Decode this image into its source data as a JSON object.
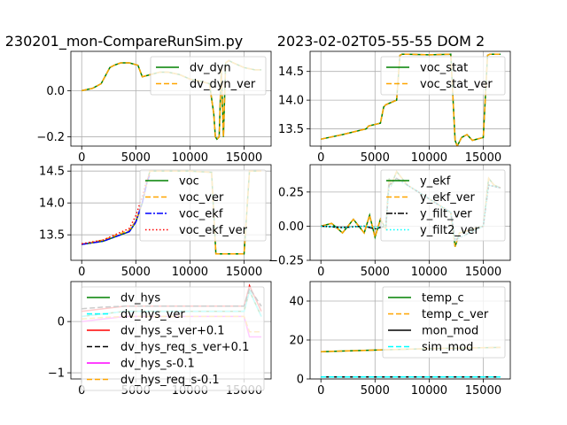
{
  "figure": {
    "title_left": "230201_mon-CompareRunSim.py",
    "title_right": "2023-02-02T05-55-55 DOM 2"
  },
  "chart_data": [
    {
      "type": "line",
      "xlim": [
        -1000,
        17500
      ],
      "ylim": [
        -0.24,
        0.17
      ],
      "xticks": [
        0,
        5000,
        10000,
        15000
      ],
      "yticks": [
        -0.2,
        0.0
      ],
      "ytick_labels": [
        "−0.2",
        "0.0"
      ],
      "grid": true,
      "legend": "top-right",
      "series": [
        {
          "name": "dv_dyn",
          "color": "#008000",
          "style": "solid",
          "x": [
            0,
            1000,
            1800,
            2600,
            3000,
            3600,
            4400,
            5200,
            5600,
            6400,
            7200,
            8000,
            9000,
            10000,
            11000,
            11800,
            12200,
            12350,
            12500,
            12700,
            12900,
            13100,
            13300,
            13600,
            14000,
            15000,
            16000,
            16600
          ],
          "y": [
            0.0,
            0.01,
            0.03,
            0.1,
            0.11,
            0.12,
            0.12,
            0.11,
            0.06,
            0.07,
            0.08,
            0.08,
            0.07,
            0.05,
            0.04,
            0.03,
            -0.1,
            -0.2,
            -0.21,
            -0.2,
            0.1,
            -0.2,
            0.12,
            0.13,
            0.12,
            0.1,
            0.09,
            0.09
          ]
        },
        {
          "name": "dv_dyn_ver",
          "color": "#FFA500",
          "style": "dashed",
          "x": [
            0,
            1000,
            1800,
            2600,
            3000,
            3600,
            4400,
            5200,
            5600,
            6400,
            7200,
            8000,
            9000,
            10000,
            11000,
            11800,
            12200,
            12350,
            12500,
            12700,
            12900,
            13100,
            13300,
            13600,
            14000,
            15000,
            16000,
            16600
          ],
          "y": [
            0.0,
            0.01,
            0.03,
            0.1,
            0.11,
            0.12,
            0.12,
            0.11,
            0.06,
            0.07,
            0.08,
            0.08,
            0.07,
            0.05,
            0.04,
            0.03,
            -0.1,
            -0.2,
            -0.21,
            -0.2,
            0.1,
            -0.2,
            0.12,
            0.13,
            0.12,
            0.1,
            0.09,
            0.09
          ]
        }
      ]
    },
    {
      "type": "line",
      "xlim": [
        -1000,
        17500
      ],
      "ylim": [
        13.2,
        14.85
      ],
      "xticks": [
        0,
        5000,
        10000,
        15000
      ],
      "yticks": [
        13.5,
        14.0,
        14.5
      ],
      "ytick_labels": [
        "13.5",
        "14.0",
        "14.5"
      ],
      "grid": true,
      "legend": "top-right",
      "series": [
        {
          "name": "voc_stat",
          "color": "#008000",
          "style": "solid",
          "x": [
            0,
            2000,
            4200,
            4400,
            5500,
            5800,
            6000,
            7000,
            7300,
            7500,
            8000,
            10000,
            12000,
            12400,
            12600,
            13000,
            13500,
            14000,
            15000,
            15400,
            15600,
            16000,
            16600
          ],
          "y": [
            13.32,
            13.4,
            13.5,
            13.55,
            13.6,
            13.88,
            13.92,
            14.0,
            14.78,
            14.8,
            14.8,
            14.79,
            14.8,
            13.3,
            13.2,
            13.35,
            13.4,
            13.3,
            13.35,
            14.78,
            14.8,
            14.8,
            14.8
          ]
        },
        {
          "name": "voc_stat_ver",
          "color": "#FFA500",
          "style": "dashed",
          "x": [
            0,
            2000,
            4200,
            4400,
            5500,
            5800,
            6000,
            7000,
            7300,
            7500,
            8000,
            10000,
            12000,
            12400,
            12600,
            13000,
            13500,
            14000,
            15000,
            15400,
            15600,
            16000,
            16600
          ],
          "y": [
            13.32,
            13.4,
            13.5,
            13.55,
            13.6,
            13.88,
            13.92,
            14.0,
            14.78,
            14.8,
            14.8,
            14.79,
            14.8,
            13.3,
            13.2,
            13.35,
            13.4,
            13.3,
            13.35,
            14.78,
            14.8,
            14.8,
            14.8
          ]
        }
      ]
    },
    {
      "type": "line",
      "xlim": [
        -1000,
        17500
      ],
      "ylim": [
        13.1,
        14.6
      ],
      "xticks": [
        0,
        5000,
        10000,
        15000
      ],
      "yticks": [
        13.5,
        14.0,
        14.5
      ],
      "ytick_labels": [
        "13.5",
        "14.0",
        "14.5"
      ],
      "grid": true,
      "legend": "top-right",
      "series": [
        {
          "name": "voc",
          "color": "#008000",
          "style": "solid",
          "x": [
            0,
            2000,
            4400,
            5000,
            5600,
            6000,
            6300,
            8000,
            10000,
            12000,
            12400,
            12800,
            13500,
            15000,
            15500,
            16600
          ],
          "y": [
            13.35,
            13.4,
            13.55,
            13.7,
            14.0,
            14.3,
            14.5,
            14.5,
            14.5,
            14.48,
            13.2,
            13.2,
            13.2,
            13.2,
            14.5,
            14.5
          ]
        },
        {
          "name": "voc_ver",
          "color": "#FFA500",
          "style": "dashed",
          "x": [
            0,
            2000,
            4400,
            5000,
            5600,
            6000,
            6300,
            8000,
            10000,
            12000,
            12400,
            12800,
            13500,
            15000,
            15500,
            16600
          ],
          "y": [
            13.35,
            13.42,
            13.57,
            13.72,
            14.0,
            14.3,
            14.5,
            14.5,
            14.5,
            14.48,
            13.2,
            13.2,
            13.2,
            13.2,
            14.5,
            14.5
          ]
        },
        {
          "name": "voc_ekf",
          "color": "#0000FF",
          "style": "dashdot",
          "x": [
            0,
            2000,
            4400,
            5000,
            5600,
            6000,
            6300
          ],
          "y": [
            13.35,
            13.4,
            13.55,
            13.7,
            14.0,
            14.3,
            14.45
          ]
        },
        {
          "name": "voc_ekf_ver",
          "color": "#FF0000",
          "style": "dotted",
          "x": [
            0,
            2000,
            4400,
            5000,
            5600,
            6000,
            6300
          ],
          "y": [
            13.36,
            13.42,
            13.6,
            13.8,
            14.1,
            14.35,
            14.45
          ]
        }
      ]
    },
    {
      "type": "line",
      "xlim": [
        -1000,
        17500
      ],
      "ylim": [
        -0.25,
        0.45
      ],
      "xticks": [
        0,
        5000,
        10000,
        15000
      ],
      "yticks": [
        -0.25,
        0.0,
        0.25
      ],
      "ytick_labels": [
        "−0.25",
        "0.00",
        "0.25"
      ],
      "grid": true,
      "legend": "top-right",
      "series": [
        {
          "name": "y_ekf",
          "color": "#008000",
          "style": "solid",
          "x": [
            0,
            1000,
            2000,
            3000,
            4000,
            4500,
            5000,
            5500,
            6000,
            6300,
            6500,
            7000,
            8000,
            10000,
            12000,
            12400,
            12800,
            15000,
            15500,
            16000,
            16600
          ],
          "y": [
            0.0,
            0.02,
            -0.05,
            0.05,
            -0.05,
            0.08,
            -0.08,
            0.05,
            -0.02,
            0.35,
            0.3,
            0.4,
            0.3,
            0.2,
            0.1,
            -0.15,
            -0.05,
            0.0,
            0.35,
            0.3,
            0.28
          ]
        },
        {
          "name": "y_ekf_ver",
          "color": "#FFA500",
          "style": "dashed",
          "x": [
            0,
            1000,
            2000,
            3000,
            4000,
            4500,
            5000,
            5500,
            6000,
            6300,
            6500,
            7000,
            8000,
            10000,
            12000,
            12400,
            12800,
            15000,
            15500,
            16000,
            16600
          ],
          "y": [
            0.0,
            0.02,
            -0.05,
            0.05,
            -0.05,
            0.08,
            -0.08,
            0.05,
            -0.02,
            0.35,
            0.3,
            0.4,
            0.3,
            0.2,
            0.1,
            -0.15,
            -0.05,
            0.0,
            0.35,
            0.3,
            0.28
          ]
        },
        {
          "name": "y_filt_ver",
          "color": "#000000",
          "style": "dashdot",
          "x": [
            0,
            2000,
            4000,
            5000,
            6000,
            6300,
            7000,
            8000,
            10000,
            12000,
            12400,
            15000,
            15500,
            16600
          ],
          "y": [
            0.0,
            -0.01,
            0.0,
            -0.02,
            0.0,
            0.3,
            0.35,
            0.3,
            0.2,
            0.1,
            -0.1,
            0.0,
            0.3,
            0.28
          ]
        },
        {
          "name": "y_filt2_ver",
          "color": "#00FFFF",
          "style": "dotted",
          "x": [
            0,
            2000,
            4000,
            5000,
            6000,
            6300,
            7000,
            8000,
            10000,
            12000,
            12400,
            15000,
            15500,
            16600
          ],
          "y": [
            0.0,
            -0.01,
            0.0,
            -0.01,
            0.0,
            0.28,
            0.34,
            0.3,
            0.2,
            0.1,
            -0.1,
            0.0,
            0.3,
            0.28
          ]
        }
      ]
    },
    {
      "type": "line",
      "xlim": [
        -1000,
        17500
      ],
      "ylim": [
        -1.12,
        0.78
      ],
      "xticks": [
        0,
        5000,
        10000,
        15000
      ],
      "yticks": [
        -1,
        0
      ],
      "ytick_labels": [
        "−1",
        "0"
      ],
      "grid": true,
      "legend": "top-left",
      "series": [
        {
          "name": "dv_hys",
          "color": "#008000",
          "style": "solid",
          "x": [
            0,
            2000,
            4000,
            6000,
            8000,
            10000,
            12000,
            15000,
            15500,
            16600
          ],
          "y": [
            0.1,
            0.15,
            0.2,
            0.2,
            0.2,
            0.2,
            0.2,
            0.2,
            0.6,
            0.1
          ]
        },
        {
          "name": "dv_hys_ver",
          "color": "#00FFFF",
          "style": "dashed",
          "x": [
            0,
            2000,
            4000,
            6000,
            8000,
            10000,
            12000,
            15000,
            15500,
            16600
          ],
          "y": [
            0.1,
            0.15,
            0.2,
            0.2,
            0.2,
            0.2,
            0.2,
            0.2,
            0.6,
            0.1
          ]
        },
        {
          "name": "dv_hys_s_ver+0.1",
          "color": "#FF0000",
          "style": "solid",
          "x": [
            0,
            2000,
            4000,
            6000,
            8000,
            10000,
            12000,
            15000,
            15500,
            16600
          ],
          "y": [
            0.2,
            0.25,
            0.3,
            0.3,
            0.3,
            0.3,
            0.3,
            0.3,
            0.7,
            0.2
          ]
        },
        {
          "name": "dv_hys_req_s_ver+0.1",
          "color": "#000000",
          "style": "dashed",
          "x": [
            0,
            2000,
            4000,
            6000,
            8000,
            10000,
            12000,
            15000,
            15500,
            16600
          ],
          "y": [
            0.25,
            0.28,
            0.3,
            0.3,
            0.3,
            0.3,
            0.3,
            0.3,
            0.65,
            0.3
          ]
        },
        {
          "name": "dv_hys_s-0.1",
          "color": "#FF00FF",
          "style": "solid",
          "x": [
            0,
            2000,
            4000,
            6000,
            8000,
            10000,
            12000,
            15000,
            15500,
            16600
          ],
          "y": [
            0.0,
            0.05,
            0.1,
            0.1,
            0.1,
            0.1,
            0.1,
            0.1,
            -0.3,
            -0.3
          ]
        },
        {
          "name": "dv_hys_req_s-0.1",
          "color": "#FFA500",
          "style": "dashed",
          "x": [
            0,
            2000,
            4000,
            6000,
            8000,
            10000,
            12000,
            15000,
            15500,
            16600
          ],
          "y": [
            0.05,
            0.08,
            0.1,
            0.1,
            0.1,
            0.1,
            0.1,
            0.1,
            -0.2,
            -0.2
          ]
        }
      ]
    },
    {
      "type": "line",
      "xlim": [
        -1000,
        17500
      ],
      "ylim": [
        0,
        50
      ],
      "xticks": [
        0,
        5000,
        10000,
        15000
      ],
      "yticks": [
        0,
        20,
        40
      ],
      "ytick_labels": [
        "0",
        "20",
        "40"
      ],
      "grid": true,
      "legend": "top-right",
      "series": [
        {
          "name": "temp_c",
          "color": "#008000",
          "style": "solid",
          "x": [
            0,
            5000,
            10000,
            16600
          ],
          "y": [
            14.0,
            14.8,
            15.6,
            16.2
          ]
        },
        {
          "name": "temp_c_ver",
          "color": "#FFA500",
          "style": "dashed",
          "x": [
            0,
            5000,
            10000,
            16600
          ],
          "y": [
            14.0,
            14.8,
            15.6,
            16.2
          ]
        },
        {
          "name": "mon_mod",
          "color": "#000000",
          "style": "solid",
          "x": [
            0,
            16600
          ],
          "y": [
            1,
            1
          ]
        },
        {
          "name": "sim_mod",
          "color": "#00FFFF",
          "style": "dashed",
          "x": [
            0,
            16600
          ],
          "y": [
            1,
            1
          ]
        }
      ]
    }
  ]
}
